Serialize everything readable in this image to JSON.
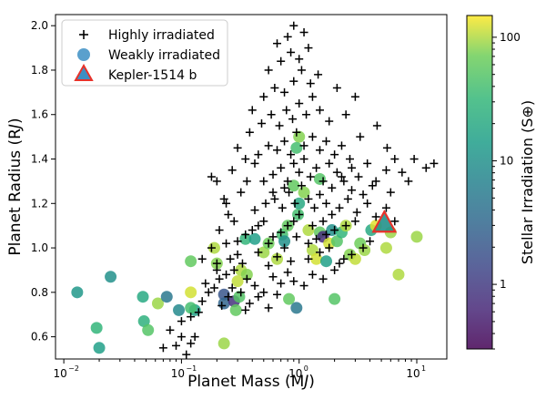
{
  "chart_data": {
    "type": "scatter",
    "xlabel": "Planet Mass (M",
    "xlabel_sub": "J",
    "xlabel_end": ")",
    "ylabel": "Planet Radius (R",
    "ylabel_sub": "J",
    "ylabel_end": ")",
    "colorbar_label": "Stellar Irradiation (S",
    "colorbar_sub": "⊕",
    "colorbar_end": ")",
    "x_scale": "log",
    "xlim": [
      0.0085,
      18
    ],
    "ylim": [
      0.5,
      2.05
    ],
    "x_ticks": [
      {
        "value": 0.01,
        "base": "10",
        "exp": "−2"
      },
      {
        "value": 0.1,
        "base": "10",
        "exp": "−1"
      },
      {
        "value": 1,
        "base": "10",
        "exp": "0"
      },
      {
        "value": 10,
        "base": "10",
        "exp": "1"
      }
    ],
    "y_ticks": [
      {
        "value": 0.6,
        "label": "0.6"
      },
      {
        "value": 0.8,
        "label": "0.8"
      },
      {
        "value": 1.0,
        "label": "1.0"
      },
      {
        "value": 1.2,
        "label": "1.2"
      },
      {
        "value": 1.4,
        "label": "1.4"
      },
      {
        "value": 1.6,
        "label": "1.6"
      },
      {
        "value": 1.8,
        "label": "1.8"
      },
      {
        "value": 2.0,
        "label": "2.0"
      }
    ],
    "colorbar": {
      "scale": "log",
      "range": [
        0.3,
        150
      ],
      "colormap": "viridis",
      "ticks": [
        {
          "value": 1,
          "label": "1"
        },
        {
          "value": 10,
          "label": "10"
        },
        {
          "value": 100,
          "label": "100"
        }
      ]
    },
    "grid": false,
    "legend": {
      "position": "top-left",
      "entries": [
        {
          "label": "Highly irradiated",
          "marker": "plus",
          "color": "#000000"
        },
        {
          "label": "Weakly irradiated",
          "marker": "circle",
          "color": "#3d8fc4"
        },
        {
          "label": "Kepler-1514 b",
          "marker": "triangle",
          "color": "#3d8fc4",
          "edge": "#e8322a"
        }
      ]
    },
    "series": [
      {
        "name": "Highly irradiated",
        "marker": "plus",
        "points": [
          [
            0.07,
            0.55
          ],
          [
            0.09,
            0.56
          ],
          [
            0.1,
            0.6
          ],
          [
            0.11,
            0.52
          ],
          [
            0.12,
            0.57
          ],
          [
            0.13,
            0.6
          ],
          [
            0.08,
            0.63
          ],
          [
            0.1,
            0.67
          ],
          [
            0.12,
            0.69
          ],
          [
            0.14,
            0.71
          ],
          [
            0.15,
            0.76
          ],
          [
            0.17,
            0.8
          ],
          [
            0.19,
            0.82
          ],
          [
            0.21,
            0.86
          ],
          [
            0.24,
            0.88
          ],
          [
            0.28,
            0.9
          ],
          [
            0.33,
            0.93
          ],
          [
            0.16,
            0.84
          ],
          [
            0.2,
            0.9
          ],
          [
            0.26,
            0.95
          ],
          [
            0.3,
            0.97
          ],
          [
            0.22,
            0.74
          ],
          [
            0.27,
            0.82
          ],
          [
            0.36,
            0.86
          ],
          [
            0.42,
            0.83
          ],
          [
            0.5,
            0.8
          ],
          [
            0.6,
            0.87
          ],
          [
            0.7,
            0.84
          ],
          [
            0.8,
            0.89
          ],
          [
            0.9,
            0.85
          ],
          [
            1.1,
            0.83
          ],
          [
            1.3,
            0.88
          ],
          [
            1.6,
            0.86
          ],
          [
            2.0,
            0.9
          ],
          [
            2.4,
            0.95
          ],
          [
            0.35,
            0.72
          ],
          [
            0.45,
            0.78
          ],
          [
            0.55,
            0.73
          ],
          [
            0.65,
            0.79
          ],
          [
            0.3,
            1.03
          ],
          [
            0.35,
            1.06
          ],
          [
            0.4,
            1.08
          ],
          [
            0.45,
            1.1
          ],
          [
            0.5,
            1.12
          ],
          [
            0.55,
            1.02
          ],
          [
            0.6,
            1.05
          ],
          [
            0.7,
            1.07
          ],
          [
            0.8,
            1.1
          ],
          [
            0.9,
            1.12
          ],
          [
            1.0,
            1.15
          ],
          [
            1.2,
            1.02
          ],
          [
            1.4,
            1.04
          ],
          [
            1.7,
            1.06
          ],
          [
            2.0,
            1.08
          ],
          [
            2.5,
            1.1
          ],
          [
            3.0,
            1.12
          ],
          [
            3.5,
            1.0
          ],
          [
            4.0,
            1.03
          ],
          [
            0.42,
            1.17
          ],
          [
            0.52,
            1.2
          ],
          [
            0.62,
            1.22
          ],
          [
            0.72,
            1.18
          ],
          [
            0.82,
            1.25
          ],
          [
            0.92,
            1.2
          ],
          [
            1.05,
            1.28
          ],
          [
            1.2,
            1.22
          ],
          [
            1.35,
            1.18
          ],
          [
            1.5,
            1.24
          ],
          [
            1.7,
            1.2
          ],
          [
            1.9,
            1.15
          ],
          [
            2.2,
            1.18
          ],
          [
            2.6,
            1.22
          ],
          [
            3.1,
            1.16
          ],
          [
            3.8,
            1.2
          ],
          [
            4.5,
            1.14
          ],
          [
            5.5,
            1.18
          ],
          [
            6.5,
            1.12
          ],
          [
            0.5,
            1.3
          ],
          [
            0.6,
            1.33
          ],
          [
            0.7,
            1.36
          ],
          [
            0.8,
            1.3
          ],
          [
            0.9,
            1.38
          ],
          [
            1.0,
            1.34
          ],
          [
            1.1,
            1.4
          ],
          [
            1.25,
            1.32
          ],
          [
            1.4,
            1.36
          ],
          [
            1.6,
            1.3
          ],
          [
            1.8,
            1.38
          ],
          [
            2.1,
            1.34
          ],
          [
            2.4,
            1.3
          ],
          [
            2.8,
            1.36
          ],
          [
            3.2,
            1.32
          ],
          [
            3.8,
            1.38
          ],
          [
            4.5,
            1.3
          ],
          [
            5.5,
            1.35
          ],
          [
            6.5,
            1.4
          ],
          [
            0.45,
            1.42
          ],
          [
            0.55,
            1.46
          ],
          [
            0.65,
            1.44
          ],
          [
            0.75,
            1.48
          ],
          [
            0.85,
            1.42
          ],
          [
            0.95,
            1.52
          ],
          [
            1.1,
            1.46
          ],
          [
            1.3,
            1.5
          ],
          [
            1.5,
            1.44
          ],
          [
            1.7,
            1.48
          ],
          [
            2.0,
            1.42
          ],
          [
            2.3,
            1.46
          ],
          [
            2.7,
            1.4
          ],
          [
            0.3,
            1.45
          ],
          [
            0.35,
            1.4
          ],
          [
            0.38,
            1.52
          ],
          [
            0.48,
            1.56
          ],
          [
            0.58,
            1.6
          ],
          [
            0.68,
            1.55
          ],
          [
            0.78,
            1.62
          ],
          [
            0.88,
            1.58
          ],
          [
            1.0,
            1.65
          ],
          [
            1.15,
            1.6
          ],
          [
            1.3,
            1.68
          ],
          [
            1.5,
            1.62
          ],
          [
            1.8,
            1.57
          ],
          [
            0.4,
            1.62
          ],
          [
            0.5,
            1.68
          ],
          [
            0.62,
            1.72
          ],
          [
            0.75,
            1.7
          ],
          [
            0.9,
            1.75
          ],
          [
            1.05,
            1.8
          ],
          [
            1.25,
            1.74
          ],
          [
            1.45,
            1.78
          ],
          [
            0.55,
            1.8
          ],
          [
            0.7,
            1.84
          ],
          [
            0.85,
            1.88
          ],
          [
            1.0,
            1.85
          ],
          [
            1.2,
            1.9
          ],
          [
            0.65,
            1.92
          ],
          [
            0.8,
            1.95
          ],
          [
            1.1,
            1.97
          ],
          [
            0.9,
            2.0
          ],
          [
            0.2,
            1.3
          ],
          [
            0.23,
            1.22
          ],
          [
            0.25,
            1.15
          ],
          [
            0.27,
            1.35
          ],
          [
            0.32,
            1.25
          ],
          [
            0.36,
            1.3
          ],
          [
            0.42,
            1.38
          ],
          [
            0.6,
            1.25
          ],
          [
            0.75,
            1.27
          ],
          [
            1.9,
            1.27
          ],
          [
            2.3,
            1.32
          ],
          [
            2.8,
            1.26
          ],
          [
            3.5,
            1.24
          ],
          [
            4.2,
            1.28
          ],
          [
            7.5,
            1.34
          ],
          [
            9.5,
            1.4
          ],
          [
            12,
            1.36
          ],
          [
            14,
            1.38
          ],
          [
            3.3,
            1.5
          ],
          [
            4.6,
            1.55
          ],
          [
            5.6,
            1.45
          ],
          [
            2.5,
            1.6
          ],
          [
            3.0,
            1.68
          ],
          [
            2.1,
            1.72
          ],
          [
            0.18,
            1.32
          ],
          [
            0.21,
            1.08
          ],
          [
            0.24,
            1.2
          ],
          [
            0.28,
            1.12
          ],
          [
            8.5,
            1.3
          ],
          [
            6,
            1.25
          ],
          [
            0.15,
            0.95
          ],
          [
            0.18,
            1.0
          ],
          [
            0.2,
            0.93
          ],
          [
            0.24,
            1.02
          ],
          [
            1.2,
            0.95
          ],
          [
            1.5,
            0.98
          ],
          [
            1.8,
            1.0
          ],
          [
            2.2,
            0.93
          ],
          [
            2.8,
            0.97
          ],
          [
            0.25,
            0.78
          ],
          [
            0.32,
            0.8
          ],
          [
            0.38,
            0.75
          ],
          [
            1.3,
            1.1
          ],
          [
            1.6,
            1.12
          ],
          [
            0.95,
            1.05
          ],
          [
            0.45,
            0.98
          ],
          [
            0.55,
            0.92
          ],
          [
            0.65,
            0.96
          ],
          [
            0.75,
            1.0
          ],
          [
            0.85,
            0.94
          ]
        ]
      },
      {
        "name": "Weakly irradiated",
        "marker": "circle",
        "points": [
          {
            "x": 0.013,
            "y": 0.8,
            "s": 12
          },
          {
            "x": 0.02,
            "y": 0.55,
            "s": 15
          },
          {
            "x": 0.019,
            "y": 0.64,
            "s": 30
          },
          {
            "x": 0.025,
            "y": 0.87,
            "s": 10
          },
          {
            "x": 0.047,
            "y": 0.78,
            "s": 20
          },
          {
            "x": 0.048,
            "y": 0.67,
            "s": 25
          },
          {
            "x": 0.052,
            "y": 0.63,
            "s": 50
          },
          {
            "x": 0.063,
            "y": 0.75,
            "s": 90
          },
          {
            "x": 0.075,
            "y": 0.78,
            "s": 5
          },
          {
            "x": 0.095,
            "y": 0.72,
            "s": 8
          },
          {
            "x": 0.12,
            "y": 0.8,
            "s": 120
          },
          {
            "x": 0.12,
            "y": 0.94,
            "s": 60
          },
          {
            "x": 0.13,
            "y": 0.72,
            "s": 15
          },
          {
            "x": 0.12,
            "y": 0.73,
            "s": 40
          },
          {
            "x": 0.19,
            "y": 1.0,
            "s": 100
          },
          {
            "x": 0.2,
            "y": 0.93,
            "s": 80
          },
          {
            "x": 0.23,
            "y": 0.57,
            "s": 90
          },
          {
            "x": 0.23,
            "y": 0.79,
            "s": 2
          },
          {
            "x": 0.23,
            "y": 0.75,
            "s": 3
          },
          {
            "x": 0.28,
            "y": 0.76,
            "s": 0.8
          },
          {
            "x": 0.29,
            "y": 0.72,
            "s": 60
          },
          {
            "x": 0.31,
            "y": 0.78,
            "s": 50
          },
          {
            "x": 0.3,
            "y": 0.85,
            "s": 110
          },
          {
            "x": 0.32,
            "y": 0.9,
            "s": 100
          },
          {
            "x": 0.36,
            "y": 0.88,
            "s": 80
          },
          {
            "x": 0.35,
            "y": 1.04,
            "s": 30
          },
          {
            "x": 0.42,
            "y": 1.04,
            "s": 15
          },
          {
            "x": 0.5,
            "y": 0.98,
            "s": 90
          },
          {
            "x": 0.55,
            "y": 1.02,
            "s": 70
          },
          {
            "x": 0.65,
            "y": 0.95,
            "s": 100
          },
          {
            "x": 0.72,
            "y": 1.06,
            "s": 40
          },
          {
            "x": 0.75,
            "y": 1.03,
            "s": 10
          },
          {
            "x": 0.8,
            "y": 1.1,
            "s": 60
          },
          {
            "x": 0.82,
            "y": 0.77,
            "s": 60
          },
          {
            "x": 0.95,
            "y": 0.73,
            "s": 5
          },
          {
            "x": 0.98,
            "y": 1.15,
            "s": 40
          },
          {
            "x": 1.0,
            "y": 1.2,
            "s": 20
          },
          {
            "x": 1.1,
            "y": 1.25,
            "s": 80
          },
          {
            "x": 1.2,
            "y": 1.08,
            "s": 100
          },
          {
            "x": 1.3,
            "y": 0.99,
            "s": 100
          },
          {
            "x": 1.4,
            "y": 0.95,
            "s": 120
          },
          {
            "x": 1.5,
            "y": 1.07,
            "s": 60
          },
          {
            "x": 1.6,
            "y": 1.05,
            "s": 0.7
          },
          {
            "x": 1.7,
            "y": 0.94,
            "s": 15
          },
          {
            "x": 1.8,
            "y": 1.02,
            "s": 120
          },
          {
            "x": 1.9,
            "y": 1.08,
            "s": 10
          },
          {
            "x": 2.0,
            "y": 0.77,
            "s": 50
          },
          {
            "x": 2.1,
            "y": 1.03,
            "s": 50
          },
          {
            "x": 2.3,
            "y": 1.07,
            "s": 30
          },
          {
            "x": 2.5,
            "y": 1.1,
            "s": 100
          },
          {
            "x": 2.7,
            "y": 0.97,
            "s": 80
          },
          {
            "x": 3.0,
            "y": 0.95,
            "s": 110
          },
          {
            "x": 3.3,
            "y": 1.02,
            "s": 70
          },
          {
            "x": 3.6,
            "y": 0.99,
            "s": 90
          },
          {
            "x": 4.1,
            "y": 1.08,
            "s": 20
          },
          {
            "x": 4.5,
            "y": 1.1,
            "s": 130
          },
          {
            "x": 5.5,
            "y": 1.0,
            "s": 100
          },
          {
            "x": 6.0,
            "y": 1.07,
            "s": 90
          },
          {
            "x": 7.0,
            "y": 0.88,
            "s": 100
          },
          {
            "x": 10.0,
            "y": 1.05,
            "s": 90
          },
          {
            "x": 1.5,
            "y": 1.31,
            "s": 50
          },
          {
            "x": 0.9,
            "y": 1.28,
            "s": 60
          },
          {
            "x": 1.0,
            "y": 1.5,
            "s": 80
          },
          {
            "x": 0.95,
            "y": 1.45,
            "s": 40
          }
        ]
      },
      {
        "name": "Kepler-1514 b",
        "marker": "triangle",
        "points": [
          {
            "x": 5.3,
            "y": 1.11,
            "s": 10
          }
        ]
      }
    ]
  }
}
